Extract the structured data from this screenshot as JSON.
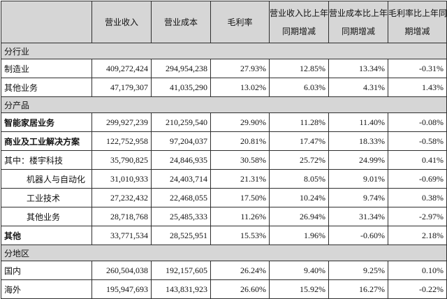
{
  "colors": {
    "border": "#2e2e2e",
    "header_bg": "#d6d6d6",
    "section_bg": "#d6d6d6",
    "text": "#111111",
    "bg": "#ffffff"
  },
  "table": {
    "column_keys": [
      "revenue",
      "cost",
      "gross-margin",
      "revenue-yoy-change",
      "cost-yoy-change",
      "margin-yoy-change"
    ],
    "headers": [
      {
        "name": "header-blank",
        "lines": [
          ""
        ]
      },
      {
        "name": "header-revenue",
        "lines": [
          "营业收入"
        ]
      },
      {
        "name": "header-cost",
        "lines": [
          "营业成本"
        ]
      },
      {
        "name": "header-gross-margin",
        "lines": [
          "毛利率"
        ]
      },
      {
        "name": "header-revenue-yoy-change",
        "lines": [
          "营业收入比上年",
          "同期增减"
        ]
      },
      {
        "name": "header-cost-yoy-change",
        "lines": [
          "营业成本比上年",
          "同期增减"
        ]
      },
      {
        "name": "header-margin-yoy-change",
        "lines": [
          "毛利率比上年同",
          "期增减"
        ]
      }
    ],
    "rows": [
      {
        "type": "section",
        "label": "分行业"
      },
      {
        "type": "data",
        "label": "制造业",
        "bold": false,
        "indent": false,
        "values": [
          "409,272,424",
          "294,954,238",
          "27.93%",
          "12.85%",
          "13.34%",
          "-0.31%"
        ]
      },
      {
        "type": "data",
        "label": "其他业务",
        "bold": false,
        "indent": false,
        "values": [
          "47,179,307",
          "41,035,290",
          "13.02%",
          "6.03%",
          "4.31%",
          "1.43%"
        ]
      },
      {
        "type": "section",
        "label": "分产品"
      },
      {
        "type": "data",
        "label": "智能家居业务",
        "bold": true,
        "indent": false,
        "values": [
          "299,927,239",
          "210,259,540",
          "29.90%",
          "11.28%",
          "11.40%",
          "-0.08%"
        ]
      },
      {
        "type": "data",
        "label": "商业及工业解决方案",
        "bold": true,
        "indent": false,
        "values": [
          "122,752,958",
          "97,204,037",
          "20.81%",
          "17.47%",
          "18.33%",
          "-0.58%"
        ]
      },
      {
        "type": "data",
        "label": "其中：楼宇科技",
        "bold": false,
        "indent": false,
        "values": [
          "35,790,825",
          "24,846,935",
          "30.58%",
          "25.72%",
          "24.99%",
          "0.41%"
        ]
      },
      {
        "type": "data",
        "label": "机器人与自动化",
        "bold": false,
        "indent": true,
        "values": [
          "31,010,933",
          "24,403,714",
          "21.31%",
          "8.05%",
          "9.01%",
          "-0.69%"
        ]
      },
      {
        "type": "data",
        "label": "工业技术",
        "bold": false,
        "indent": true,
        "values": [
          "27,232,432",
          "22,468,055",
          "17.50%",
          "10.24%",
          "9.74%",
          "0.38%"
        ]
      },
      {
        "type": "data",
        "label": "其他业务",
        "bold": false,
        "indent": true,
        "values": [
          "28,718,768",
          "25,485,333",
          "11.26%",
          "26.94%",
          "31.34%",
          "-2.97%"
        ]
      },
      {
        "type": "data",
        "label": "其他",
        "bold": true,
        "indent": false,
        "values": [
          "33,771,534",
          "28,525,951",
          "15.53%",
          "1.96%",
          "-0.60%",
          "2.18%"
        ]
      },
      {
        "type": "section",
        "label": "分地区"
      },
      {
        "type": "data",
        "label": "国内",
        "bold": false,
        "indent": false,
        "values": [
          "260,504,038",
          "192,157,605",
          "26.24%",
          "9.40%",
          "9.25%",
          "0.10%"
        ]
      },
      {
        "type": "data",
        "label": "海外",
        "bold": false,
        "indent": false,
        "values": [
          "195,947,693",
          "143,831,923",
          "26.60%",
          "15.92%",
          "16.27%",
          "-0.22%"
        ]
      }
    ]
  }
}
